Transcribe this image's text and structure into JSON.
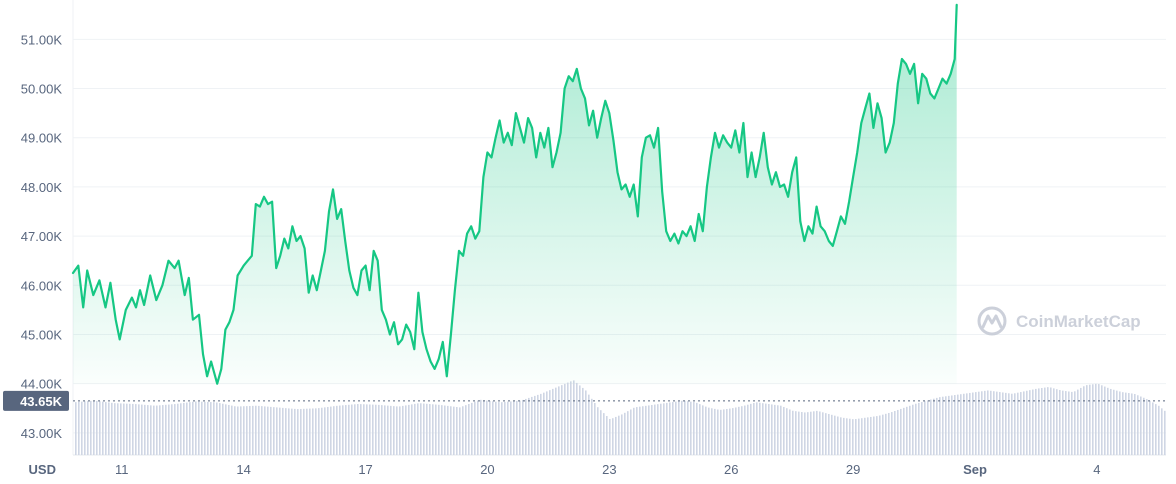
{
  "chart_data": {
    "type": "line",
    "currency_label": "USD",
    "y_ticks": [
      "51.00K",
      "50.00K",
      "49.00K",
      "48.00K",
      "47.00K",
      "46.00K",
      "45.00K",
      "44.00K",
      "43.00K"
    ],
    "y_tick_values": [
      51000,
      50000,
      49000,
      48000,
      47000,
      46000,
      45000,
      44000,
      43000
    ],
    "ylim": [
      42550,
      51800
    ],
    "x_ticks": [
      "11",
      "14",
      "17",
      "20",
      "23",
      "26",
      "29",
      "Sep",
      "4"
    ],
    "x_tick_days": [
      11,
      14,
      17,
      20,
      23,
      26,
      29,
      32,
      35
    ],
    "x_range_days": [
      9.8,
      36.7
    ],
    "current_price_label": "43.65K",
    "current_price_value": 43650,
    "grid": true,
    "colors": {
      "line": "#16c784",
      "fill": "#16c784",
      "volume": "#cfd6e4",
      "label_bg": "#58667e",
      "text": "#58667e"
    },
    "series": [
      {
        "values": [
          [
            9.8,
            46250
          ],
          [
            9.93,
            46400
          ],
          [
            10.05,
            45550
          ],
          [
            10.15,
            46300
          ],
          [
            10.3,
            45800
          ],
          [
            10.45,
            46100
          ],
          [
            10.6,
            45550
          ],
          [
            10.72,
            46050
          ],
          [
            10.85,
            45300
          ],
          [
            10.95,
            44900
          ],
          [
            11.1,
            45500
          ],
          [
            11.25,
            45750
          ],
          [
            11.35,
            45550
          ],
          [
            11.45,
            45900
          ],
          [
            11.55,
            45600
          ],
          [
            11.7,
            46200
          ],
          [
            11.85,
            45700
          ],
          [
            12.0,
            46000
          ],
          [
            12.15,
            46500
          ],
          [
            12.3,
            46350
          ],
          [
            12.4,
            46500
          ],
          [
            12.55,
            45800
          ],
          [
            12.65,
            46150
          ],
          [
            12.75,
            45300
          ],
          [
            12.9,
            45400
          ],
          [
            13.0,
            44600
          ],
          [
            13.1,
            44150
          ],
          [
            13.2,
            44450
          ],
          [
            13.35,
            44000
          ],
          [
            13.45,
            44300
          ],
          [
            13.55,
            45100
          ],
          [
            13.65,
            45250
          ],
          [
            13.75,
            45500
          ],
          [
            13.85,
            46200
          ],
          [
            14.0,
            46400
          ],
          [
            14.1,
            46500
          ],
          [
            14.2,
            46600
          ],
          [
            14.3,
            47650
          ],
          [
            14.4,
            47600
          ],
          [
            14.5,
            47800
          ],
          [
            14.6,
            47650
          ],
          [
            14.7,
            47700
          ],
          [
            14.8,
            46350
          ],
          [
            14.9,
            46600
          ],
          [
            15.0,
            46950
          ],
          [
            15.1,
            46750
          ],
          [
            15.2,
            47200
          ],
          [
            15.3,
            46900
          ],
          [
            15.4,
            47000
          ],
          [
            15.5,
            46750
          ],
          [
            15.6,
            45850
          ],
          [
            15.7,
            46200
          ],
          [
            15.8,
            45900
          ],
          [
            15.9,
            46300
          ],
          [
            16.0,
            46700
          ],
          [
            16.1,
            47500
          ],
          [
            16.2,
            47950
          ],
          [
            16.3,
            47350
          ],
          [
            16.4,
            47550
          ],
          [
            16.5,
            46900
          ],
          [
            16.6,
            46300
          ],
          [
            16.7,
            45950
          ],
          [
            16.8,
            45800
          ],
          [
            16.9,
            46300
          ],
          [
            17.0,
            46400
          ],
          [
            17.1,
            45900
          ],
          [
            17.2,
            46700
          ],
          [
            17.3,
            46500
          ],
          [
            17.4,
            45500
          ],
          [
            17.5,
            45300
          ],
          [
            17.6,
            45000
          ],
          [
            17.7,
            45250
          ],
          [
            17.8,
            44800
          ],
          [
            17.9,
            44900
          ],
          [
            18.0,
            45200
          ],
          [
            18.1,
            45050
          ],
          [
            18.2,
            44700
          ],
          [
            18.3,
            45850
          ],
          [
            18.4,
            45050
          ],
          [
            18.5,
            44700
          ],
          [
            18.6,
            44450
          ],
          [
            18.7,
            44300
          ],
          [
            18.8,
            44500
          ],
          [
            18.9,
            44850
          ],
          [
            19.0,
            44150
          ],
          [
            19.1,
            45000
          ],
          [
            19.2,
            45900
          ],
          [
            19.3,
            46700
          ],
          [
            19.4,
            46600
          ],
          [
            19.5,
            47050
          ],
          [
            19.6,
            47200
          ],
          [
            19.7,
            46950
          ],
          [
            19.8,
            47100
          ],
          [
            19.9,
            48200
          ],
          [
            20.0,
            48700
          ],
          [
            20.1,
            48600
          ],
          [
            20.2,
            49000
          ],
          [
            20.3,
            49350
          ],
          [
            20.4,
            48900
          ],
          [
            20.5,
            49100
          ],
          [
            20.6,
            48850
          ],
          [
            20.7,
            49500
          ],
          [
            20.8,
            49200
          ],
          [
            20.9,
            48900
          ],
          [
            21.0,
            49400
          ],
          [
            21.1,
            49200
          ],
          [
            21.2,
            48600
          ],
          [
            21.3,
            49100
          ],
          [
            21.4,
            48800
          ],
          [
            21.5,
            49200
          ],
          [
            21.6,
            48400
          ],
          [
            21.7,
            48700
          ],
          [
            21.8,
            49100
          ],
          [
            21.9,
            50000
          ],
          [
            22.0,
            50250
          ],
          [
            22.1,
            50150
          ],
          [
            22.2,
            50400
          ],
          [
            22.3,
            50000
          ],
          [
            22.4,
            49800
          ],
          [
            22.5,
            49250
          ],
          [
            22.6,
            49550
          ],
          [
            22.7,
            49000
          ],
          [
            22.8,
            49400
          ],
          [
            22.9,
            49750
          ],
          [
            23.0,
            49500
          ],
          [
            23.1,
            48950
          ],
          [
            23.2,
            48300
          ],
          [
            23.3,
            47950
          ],
          [
            23.4,
            48050
          ],
          [
            23.5,
            47800
          ],
          [
            23.6,
            48050
          ],
          [
            23.7,
            47400
          ],
          [
            23.8,
            48600
          ],
          [
            23.9,
            49000
          ],
          [
            24.0,
            49050
          ],
          [
            24.1,
            48800
          ],
          [
            24.2,
            49200
          ],
          [
            24.3,
            47900
          ],
          [
            24.4,
            47100
          ],
          [
            24.5,
            46900
          ],
          [
            24.6,
            47050
          ],
          [
            24.7,
            46850
          ],
          [
            24.8,
            47100
          ],
          [
            24.9,
            47000
          ],
          [
            25.0,
            47200
          ],
          [
            25.1,
            46900
          ],
          [
            25.2,
            47450
          ],
          [
            25.3,
            47100
          ],
          [
            25.4,
            48000
          ],
          [
            25.5,
            48600
          ],
          [
            25.6,
            49100
          ],
          [
            25.7,
            48800
          ],
          [
            25.8,
            49050
          ],
          [
            25.9,
            48900
          ],
          [
            26.0,
            48800
          ],
          [
            26.1,
            49150
          ],
          [
            26.2,
            48700
          ],
          [
            26.3,
            49300
          ],
          [
            26.4,
            48200
          ],
          [
            26.5,
            48700
          ],
          [
            26.6,
            48200
          ],
          [
            26.7,
            48600
          ],
          [
            26.8,
            49100
          ],
          [
            26.9,
            48400
          ],
          [
            27.0,
            48050
          ],
          [
            27.1,
            48300
          ],
          [
            27.2,
            48000
          ],
          [
            27.3,
            48050
          ],
          [
            27.4,
            47800
          ],
          [
            27.5,
            48300
          ],
          [
            27.6,
            48600
          ],
          [
            27.7,
            47300
          ],
          [
            27.8,
            46900
          ],
          [
            27.9,
            47200
          ],
          [
            28.0,
            47050
          ],
          [
            28.1,
            47600
          ],
          [
            28.2,
            47200
          ],
          [
            28.3,
            47100
          ],
          [
            28.4,
            46900
          ],
          [
            28.5,
            46800
          ],
          [
            28.6,
            47100
          ],
          [
            28.7,
            47400
          ],
          [
            28.8,
            47250
          ],
          [
            28.9,
            47700
          ],
          [
            29.0,
            48200
          ],
          [
            29.1,
            48700
          ],
          [
            29.2,
            49300
          ],
          [
            29.3,
            49600
          ],
          [
            29.4,
            49900
          ],
          [
            29.5,
            49200
          ],
          [
            29.6,
            49700
          ],
          [
            29.7,
            49400
          ],
          [
            29.8,
            48700
          ],
          [
            29.9,
            48900
          ],
          [
            30.0,
            49300
          ],
          [
            30.1,
            50100
          ],
          [
            30.2,
            50600
          ],
          [
            30.3,
            50500
          ],
          [
            30.4,
            50300
          ],
          [
            30.5,
            50500
          ],
          [
            30.6,
            49700
          ],
          [
            30.7,
            50300
          ],
          [
            30.8,
            50200
          ],
          [
            30.9,
            49900
          ],
          [
            31.0,
            49800
          ],
          [
            31.1,
            50000
          ],
          [
            31.2,
            50200
          ],
          [
            31.3,
            50100
          ],
          [
            31.4,
            50300
          ],
          [
            31.5,
            50600
          ],
          [
            31.55,
            51700
          ]
        ]
      }
    ],
    "volume": [
      [
        9.8,
        0.62
      ],
      [
        10.3,
        0.64
      ],
      [
        10.8,
        0.61
      ],
      [
        11.3,
        0.6
      ],
      [
        11.8,
        0.58
      ],
      [
        12.3,
        0.6
      ],
      [
        12.8,
        0.63
      ],
      [
        13.3,
        0.62
      ],
      [
        13.8,
        0.57
      ],
      [
        14.3,
        0.58
      ],
      [
        14.8,
        0.56
      ],
      [
        15.3,
        0.54
      ],
      [
        15.8,
        0.55
      ],
      [
        16.3,
        0.58
      ],
      [
        16.8,
        0.6
      ],
      [
        17.3,
        0.59
      ],
      [
        17.8,
        0.57
      ],
      [
        18.3,
        0.61
      ],
      [
        18.8,
        0.59
      ],
      [
        19.3,
        0.56
      ],
      [
        19.8,
        0.65
      ],
      [
        20.3,
        0.62
      ],
      [
        20.8,
        0.64
      ],
      [
        21.3,
        0.72
      ],
      [
        21.8,
        0.82
      ],
      [
        22.1,
        0.88
      ],
      [
        22.4,
        0.76
      ],
      [
        22.7,
        0.56
      ],
      [
        23.0,
        0.42
      ],
      [
        23.3,
        0.48
      ],
      [
        23.6,
        0.56
      ],
      [
        23.9,
        0.58
      ],
      [
        24.2,
        0.6
      ],
      [
        24.5,
        0.62
      ],
      [
        24.8,
        0.64
      ],
      [
        25.1,
        0.62
      ],
      [
        25.4,
        0.56
      ],
      [
        25.7,
        0.53
      ],
      [
        26.0,
        0.55
      ],
      [
        26.3,
        0.58
      ],
      [
        26.6,
        0.62
      ],
      [
        26.9,
        0.6
      ],
      [
        27.2,
        0.58
      ],
      [
        27.5,
        0.52
      ],
      [
        27.8,
        0.5
      ],
      [
        28.1,
        0.52
      ],
      [
        28.4,
        0.48
      ],
      [
        28.7,
        0.44
      ],
      [
        29.0,
        0.42
      ],
      [
        29.3,
        0.44
      ],
      [
        29.6,
        0.46
      ],
      [
        29.9,
        0.5
      ],
      [
        30.2,
        0.55
      ],
      [
        30.5,
        0.6
      ],
      [
        30.8,
        0.64
      ],
      [
        31.1,
        0.68
      ],
      [
        31.4,
        0.7
      ],
      [
        31.7,
        0.72
      ],
      [
        32.0,
        0.74
      ],
      [
        32.3,
        0.76
      ],
      [
        32.6,
        0.74
      ],
      [
        32.9,
        0.72
      ],
      [
        33.2,
        0.75
      ],
      [
        33.5,
        0.78
      ],
      [
        33.8,
        0.8
      ],
      [
        34.1,
        0.76
      ],
      [
        34.4,
        0.74
      ],
      [
        34.7,
        0.82
      ],
      [
        35.0,
        0.84
      ],
      [
        35.3,
        0.78
      ],
      [
        35.6,
        0.74
      ],
      [
        35.9,
        0.72
      ],
      [
        36.2,
        0.66
      ],
      [
        36.5,
        0.58
      ],
      [
        36.7,
        0.5
      ]
    ]
  },
  "watermark": {
    "text": "CoinMarketCap",
    "icon": "coinmarketcap-logo-icon"
  }
}
